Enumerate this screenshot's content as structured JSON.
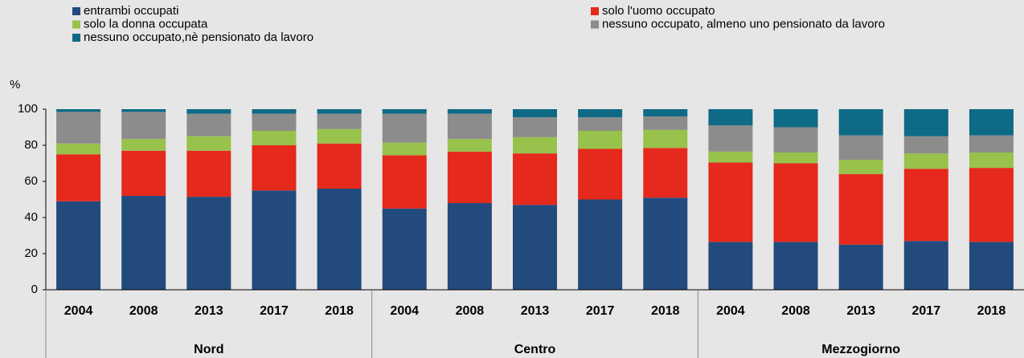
{
  "chart_data": {
    "type": "stacked_bar",
    "y_label": "%",
    "categories": [
      "2004",
      "2008",
      "2013",
      "2017",
      "2018",
      "2004",
      "2008",
      "2013",
      "2017",
      "2018",
      "2004",
      "2008",
      "2013",
      "2017",
      "2018"
    ],
    "groups": [
      "Nord",
      "Centro",
      "Mezzogiorno"
    ],
    "series": [
      {
        "name": "entrambi occupati",
        "color": "#234a7d",
        "values": [
          49,
          52,
          51.5,
          55,
          56,
          45,
          48,
          47,
          50,
          51,
          26.5,
          26.5,
          25,
          27,
          26.5
        ]
      },
      {
        "name": "solo l'uomo occupato",
        "color": "#e5291c",
        "values": [
          26,
          25,
          25.5,
          25,
          25,
          29.5,
          28.5,
          28.5,
          28,
          27.5,
          44,
          43.5,
          39,
          40,
          41
        ]
      },
      {
        "name": "solo la donna occupata",
        "color": "#98c24b",
        "values": [
          6,
          6.5,
          8,
          8,
          8,
          7,
          7,
          9,
          10,
          10,
          6,
          6,
          8,
          8.5,
          8.5
        ]
      },
      {
        "name": "nessuno occupato, almeno uno pensionato da lavoro",
        "color": "#8c8c8c",
        "values": [
          17.5,
          15,
          12.5,
          9.5,
          8.5,
          16,
          14,
          11,
          7.5,
          7.5,
          14.5,
          14,
          13.5,
          9.5,
          9.5
        ]
      },
      {
        "name": "nessuno occupato,nè pensionato da lavoro",
        "color": "#0e6a85",
        "values": [
          1.5,
          1.5,
          2.5,
          2.5,
          2.5,
          2.5,
          2.5,
          4.5,
          4.5,
          4,
          9,
          10,
          14.5,
          15,
          14.5
        ]
      }
    ],
    "ylim": [
      0,
      100
    ],
    "yticks": [
      0,
      20,
      40,
      60,
      80,
      100
    ]
  }
}
